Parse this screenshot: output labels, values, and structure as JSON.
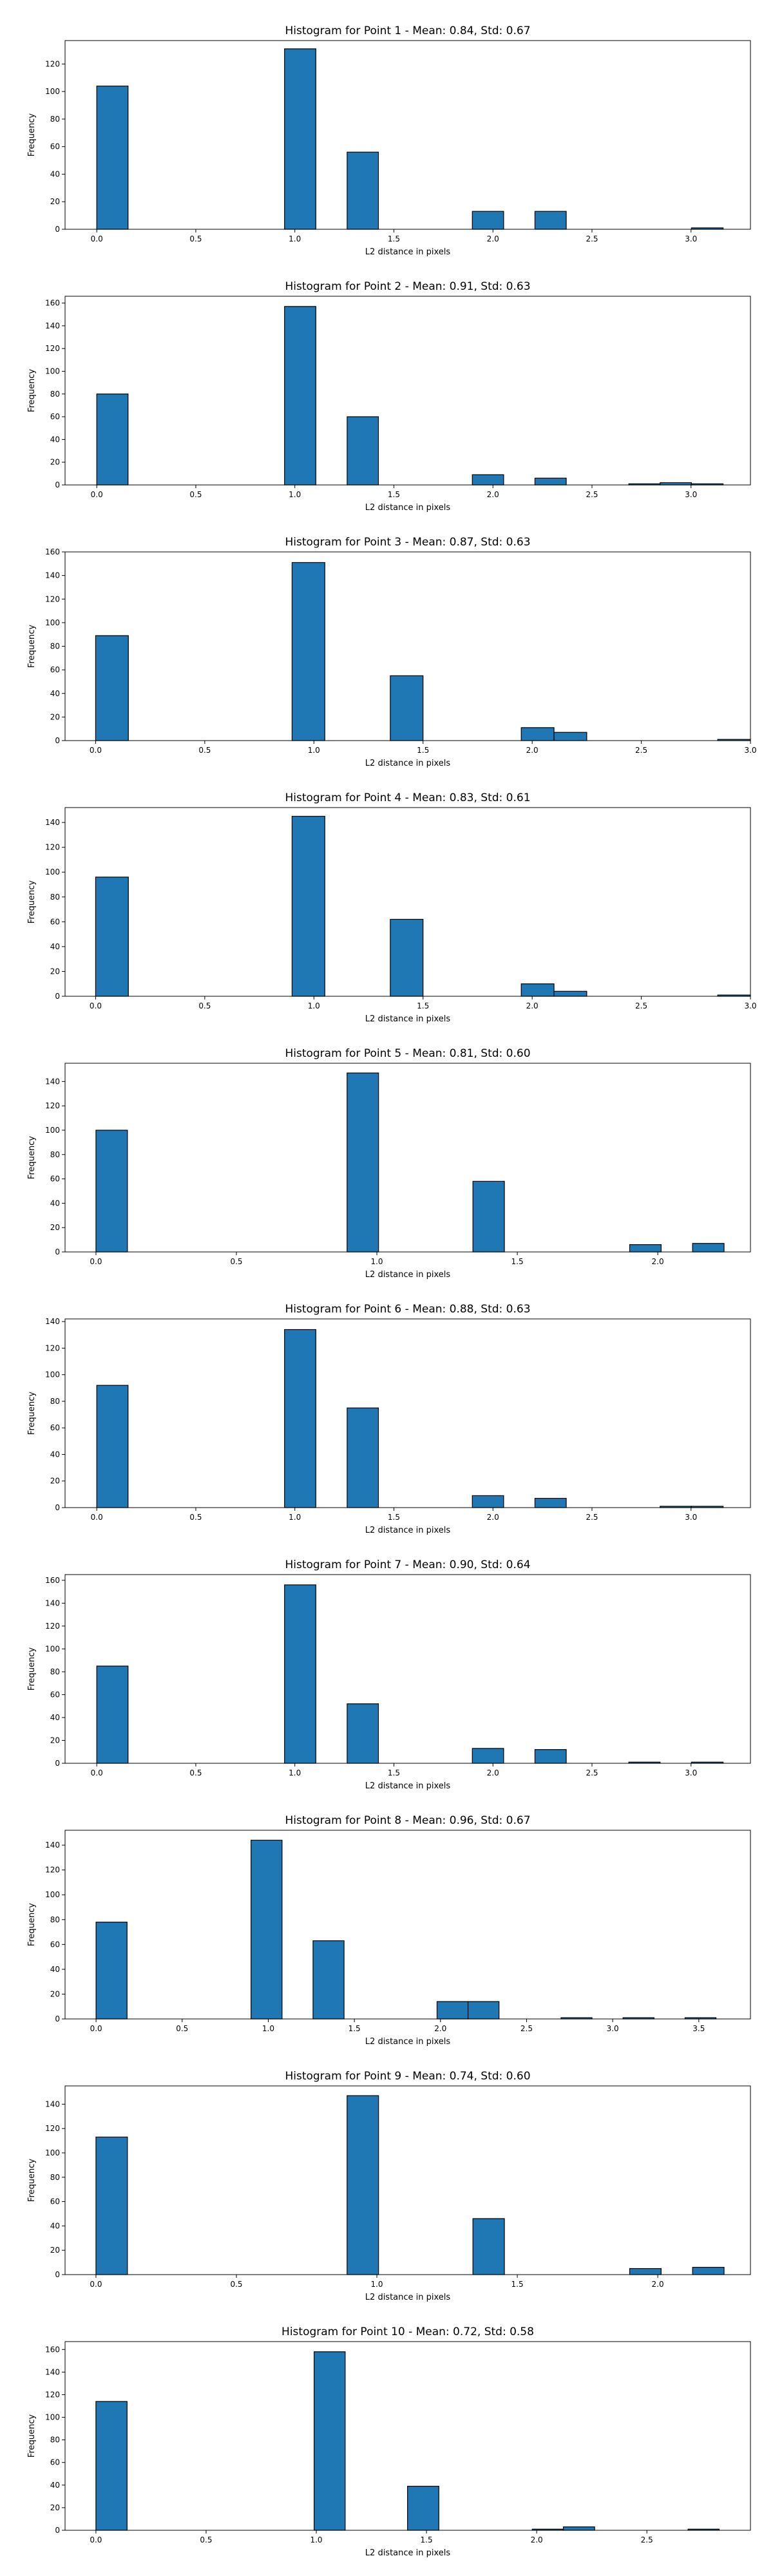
{
  "figure": {
    "bar_color": "#1f77b4",
    "edge_color": "#000000"
  },
  "chart_data": [
    {
      "type": "bar",
      "title": "Histogram for Point 1 - Mean: 0.84, Std: 0.67",
      "xlabel": "L2 distance in pixels",
      "ylabel": "Frequency",
      "xlim": [
        -0.16,
        3.3
      ],
      "ylim": [
        0,
        137
      ],
      "xticks": [
        0.0,
        0.5,
        1.0,
        1.5,
        2.0,
        2.5,
        3.0
      ],
      "yticks": [
        0,
        20,
        40,
        60,
        80,
        100,
        120
      ],
      "bins": [
        {
          "x0": 0.0,
          "x1": 0.158,
          "value": 104
        },
        {
          "x0": 0.948,
          "x1": 1.106,
          "value": 131
        },
        {
          "x0": 1.264,
          "x1": 1.422,
          "value": 56
        },
        {
          "x0": 1.896,
          "x1": 2.054,
          "value": 13
        },
        {
          "x0": 2.212,
          "x1": 2.37,
          "value": 13
        },
        {
          "x0": 3.002,
          "x1": 3.162,
          "value": 1
        }
      ]
    },
    {
      "type": "bar",
      "title": "Histogram for Point 2 - Mean: 0.91, Std: 0.63",
      "xlabel": "L2 distance in pixels",
      "ylabel": "Frequency",
      "xlim": [
        -0.16,
        3.3
      ],
      "ylim": [
        0,
        166
      ],
      "xticks": [
        0.0,
        0.5,
        1.0,
        1.5,
        2.0,
        2.5,
        3.0
      ],
      "yticks": [
        0,
        20,
        40,
        60,
        80,
        100,
        120,
        140,
        160
      ],
      "bins": [
        {
          "x0": 0.0,
          "x1": 0.158,
          "value": 80
        },
        {
          "x0": 0.948,
          "x1": 1.106,
          "value": 157
        },
        {
          "x0": 1.264,
          "x1": 1.422,
          "value": 60
        },
        {
          "x0": 1.896,
          "x1": 2.054,
          "value": 9
        },
        {
          "x0": 2.212,
          "x1": 2.37,
          "value": 6
        },
        {
          "x0": 2.686,
          "x1": 2.844,
          "value": 1
        },
        {
          "x0": 2.844,
          "x1": 3.002,
          "value": 2
        },
        {
          "x0": 3.002,
          "x1": 3.162,
          "value": 1
        }
      ]
    },
    {
      "type": "bar",
      "title": "Histogram for Point 3 - Mean: 0.87, Std: 0.63",
      "xlabel": "L2 distance in pixels",
      "ylabel": "Frequency",
      "xlim": [
        -0.14,
        3.0
      ],
      "ylim": [
        0,
        160
      ],
      "xticks": [
        0.0,
        0.5,
        1.0,
        1.5,
        2.0,
        2.5,
        3.0
      ],
      "yticks": [
        0,
        20,
        40,
        60,
        80,
        100,
        120,
        140,
        160
      ],
      "bins": [
        {
          "x0": 0.0,
          "x1": 0.15,
          "value": 89
        },
        {
          "x0": 0.9,
          "x1": 1.05,
          "value": 151
        },
        {
          "x0": 1.35,
          "x1": 1.5,
          "value": 55
        },
        {
          "x0": 1.95,
          "x1": 2.1,
          "value": 11
        },
        {
          "x0": 2.1,
          "x1": 2.25,
          "value": 7
        },
        {
          "x0": 2.85,
          "x1": 3.0,
          "value": 1
        }
      ]
    },
    {
      "type": "bar",
      "title": "Histogram for Point 4 - Mean: 0.83, Std: 0.61",
      "xlabel": "L2 distance in pixels",
      "ylabel": "Frequency",
      "xlim": [
        -0.14,
        3.0
      ],
      "ylim": [
        0,
        152
      ],
      "xticks": [
        0.0,
        0.5,
        1.0,
        1.5,
        2.0,
        2.5,
        3.0
      ],
      "yticks": [
        0,
        20,
        40,
        60,
        80,
        100,
        120,
        140
      ],
      "bins": [
        {
          "x0": 0.0,
          "x1": 0.15,
          "value": 96
        },
        {
          "x0": 0.9,
          "x1": 1.05,
          "value": 145
        },
        {
          "x0": 1.35,
          "x1": 1.5,
          "value": 62
        },
        {
          "x0": 1.95,
          "x1": 2.1,
          "value": 10
        },
        {
          "x0": 2.1,
          "x1": 2.25,
          "value": 4
        },
        {
          "x0": 2.85,
          "x1": 3.0,
          "value": 1
        }
      ]
    },
    {
      "type": "bar",
      "title": "Histogram for Point 5 - Mean: 0.81, Std: 0.60",
      "xlabel": "L2 distance in pixels",
      "ylabel": "Frequency",
      "xlim": [
        -0.11,
        2.33
      ],
      "ylim": [
        0,
        155
      ],
      "xticks": [
        0.0,
        0.5,
        1.0,
        1.5,
        2.0
      ],
      "yticks": [
        0,
        20,
        40,
        60,
        80,
        100,
        120,
        140
      ],
      "bins": [
        {
          "x0": 0.0,
          "x1": 0.112,
          "value": 100
        },
        {
          "x0": 0.894,
          "x1": 1.006,
          "value": 147
        },
        {
          "x0": 1.342,
          "x1": 1.454,
          "value": 58
        },
        {
          "x0": 1.9,
          "x1": 2.012,
          "value": 6
        },
        {
          "x0": 2.124,
          "x1": 2.236,
          "value": 7
        }
      ]
    },
    {
      "type": "bar",
      "title": "Histogram for Point 6 - Mean: 0.88, Std: 0.63",
      "xlabel": "L2 distance in pixels",
      "ylabel": "Frequency",
      "xlim": [
        -0.16,
        3.3
      ],
      "ylim": [
        0,
        142
      ],
      "xticks": [
        0.0,
        0.5,
        1.0,
        1.5,
        2.0,
        2.5,
        3.0
      ],
      "yticks": [
        0,
        20,
        40,
        60,
        80,
        100,
        120,
        140
      ],
      "bins": [
        {
          "x0": 0.0,
          "x1": 0.158,
          "value": 92
        },
        {
          "x0": 0.948,
          "x1": 1.106,
          "value": 134
        },
        {
          "x0": 1.264,
          "x1": 1.422,
          "value": 75
        },
        {
          "x0": 1.896,
          "x1": 2.054,
          "value": 9
        },
        {
          "x0": 2.212,
          "x1": 2.37,
          "value": 7
        },
        {
          "x0": 2.844,
          "x1": 3.002,
          "value": 1
        },
        {
          "x0": 3.002,
          "x1": 3.162,
          "value": 1
        }
      ]
    },
    {
      "type": "bar",
      "title": "Histogram for Point 7 - Mean: 0.90, Std: 0.64",
      "xlabel": "L2 distance in pixels",
      "ylabel": "Frequency",
      "xlim": [
        -0.16,
        3.3
      ],
      "ylim": [
        0,
        165
      ],
      "xticks": [
        0.0,
        0.5,
        1.0,
        1.5,
        2.0,
        2.5,
        3.0
      ],
      "yticks": [
        0,
        20,
        40,
        60,
        80,
        100,
        120,
        140,
        160
      ],
      "bins": [
        {
          "x0": 0.0,
          "x1": 0.158,
          "value": 85
        },
        {
          "x0": 0.948,
          "x1": 1.106,
          "value": 156
        },
        {
          "x0": 1.264,
          "x1": 1.422,
          "value": 52
        },
        {
          "x0": 1.896,
          "x1": 2.054,
          "value": 13
        },
        {
          "x0": 2.212,
          "x1": 2.37,
          "value": 12
        },
        {
          "x0": 2.686,
          "x1": 2.844,
          "value": 1
        },
        {
          "x0": 3.002,
          "x1": 3.162,
          "value": 1
        }
      ]
    },
    {
      "type": "bar",
      "title": "Histogram for Point 8 - Mean: 0.96, Std: 0.67",
      "xlabel": "L2 distance in pixels",
      "ylabel": "Frequency",
      "xlim": [
        -0.18,
        3.8
      ],
      "ylim": [
        0,
        152
      ],
      "xticks": [
        0.0,
        0.5,
        1.0,
        1.5,
        2.0,
        2.5,
        3.0,
        3.5
      ],
      "yticks": [
        0,
        20,
        40,
        60,
        80,
        100,
        120,
        140
      ],
      "bins": [
        {
          "x0": 0.0,
          "x1": 0.18,
          "value": 78
        },
        {
          "x0": 0.9,
          "x1": 1.08,
          "value": 144
        },
        {
          "x0": 1.26,
          "x1": 1.44,
          "value": 63
        },
        {
          "x0": 1.98,
          "x1": 2.16,
          "value": 14
        },
        {
          "x0": 2.16,
          "x1": 2.34,
          "value": 14
        },
        {
          "x0": 2.7,
          "x1": 2.88,
          "value": 1
        },
        {
          "x0": 3.06,
          "x1": 3.24,
          "value": 1
        },
        {
          "x0": 3.42,
          "x1": 3.6,
          "value": 1
        }
      ]
    },
    {
      "type": "bar",
      "title": "Histogram for Point 9 - Mean: 0.74, Std: 0.60",
      "xlabel": "L2 distance in pixels",
      "ylabel": "Frequency",
      "xlim": [
        -0.11,
        2.33
      ],
      "ylim": [
        0,
        155
      ],
      "xticks": [
        0.0,
        0.5,
        1.0,
        1.5,
        2.0
      ],
      "yticks": [
        0,
        20,
        40,
        60,
        80,
        100,
        120,
        140
      ],
      "bins": [
        {
          "x0": 0.0,
          "x1": 0.112,
          "value": 113
        },
        {
          "x0": 0.894,
          "x1": 1.006,
          "value": 147
        },
        {
          "x0": 1.342,
          "x1": 1.454,
          "value": 46
        },
        {
          "x0": 1.9,
          "x1": 2.012,
          "value": 5
        },
        {
          "x0": 2.124,
          "x1": 2.236,
          "value": 6
        }
      ]
    },
    {
      "type": "bar",
      "title": "Histogram for Point 10 - Mean: 0.72, Std: 0.58",
      "xlabel": "L2 distance in pixels",
      "ylabel": "Frequency",
      "xlim": [
        -0.14,
        2.97
      ],
      "ylim": [
        0,
        167
      ],
      "xticks": [
        0.0,
        0.5,
        1.0,
        1.5,
        2.0,
        2.5
      ],
      "yticks": [
        0,
        20,
        40,
        60,
        80,
        100,
        120,
        140,
        160
      ],
      "bins": [
        {
          "x0": 0.0,
          "x1": 0.1414,
          "value": 114
        },
        {
          "x0": 0.99,
          "x1": 1.131,
          "value": 158
        },
        {
          "x0": 1.414,
          "x1": 1.556,
          "value": 39
        },
        {
          "x0": 1.98,
          "x1": 2.121,
          "value": 1
        },
        {
          "x0": 2.121,
          "x1": 2.263,
          "value": 3
        },
        {
          "x0": 2.687,
          "x1": 2.828,
          "value": 1
        }
      ]
    }
  ]
}
